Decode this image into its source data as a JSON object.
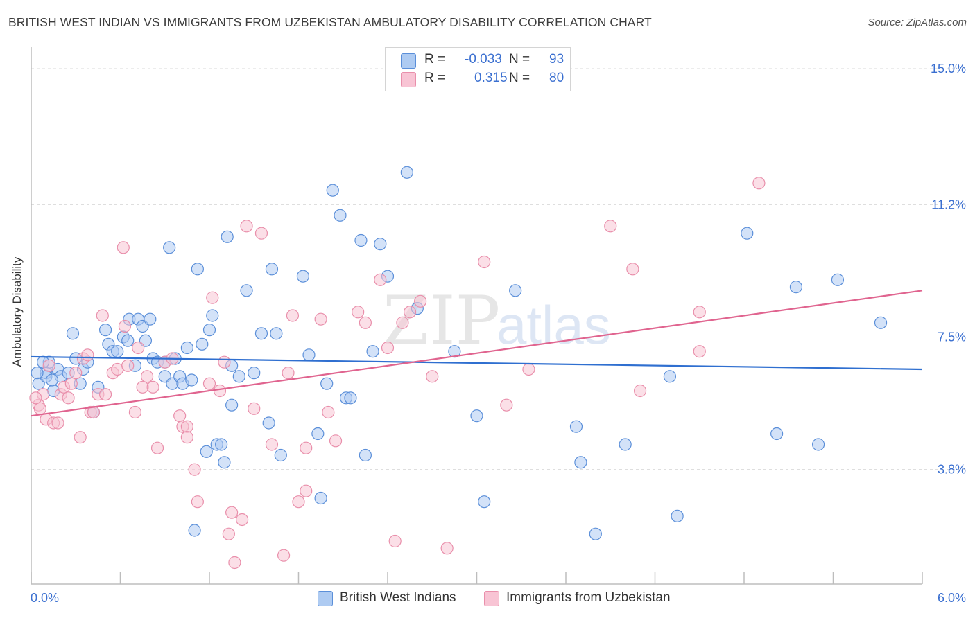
{
  "title": "BRITISH WEST INDIAN VS IMMIGRANTS FROM UZBEKISTAN AMBULATORY DISABILITY CORRELATION CHART",
  "source": "Source: ZipAtlas.com",
  "watermark": {
    "zip": "ZIP",
    "atlas": "atlas"
  },
  "colors": {
    "blue_fill": "#aecbf2",
    "blue_stroke": "#5b8fd9",
    "blue_line": "#2f6fd0",
    "pink_fill": "#f8c4d4",
    "pink_stroke": "#e98fab",
    "pink_line": "#e0648f",
    "axis_text": "#3a6fd0",
    "grid": "#d9d9d9"
  },
  "legend": {
    "rows": [
      {
        "r_label": "R =",
        "r_value": "-0.033",
        "n_label": "N =",
        "n_value": "93",
        "series": "blue"
      },
      {
        "r_label": "R =",
        "r_value": "0.315",
        "n_label": "N =",
        "n_value": "80",
        "series": "pink"
      }
    ]
  },
  "chart_data": {
    "type": "scatter",
    "xlabel": "",
    "ylabel": "Ambulatory Disability",
    "xlim": [
      0,
      6
    ],
    "ylim": [
      0.6,
      15.6
    ],
    "x_tick_labels": [
      "0.0%",
      "6.0%"
    ],
    "y_ticks": [
      3.8,
      7.5,
      11.2,
      15.0
    ],
    "y_tick_labels": [
      "3.8%",
      "7.5%",
      "11.2%",
      "15.0%"
    ],
    "legend_position": "top-center",
    "series": [
      {
        "name": "British West Indians",
        "color": "blue",
        "trend": {
          "x": [
            0,
            6
          ],
          "y": [
            6.95,
            6.6
          ]
        },
        "points": [
          [
            0.05,
            6.2
          ],
          [
            0.1,
            6.5
          ],
          [
            0.1,
            6.4
          ],
          [
            0.12,
            6.8
          ],
          [
            0.15,
            6.0
          ],
          [
            0.18,
            6.6
          ],
          [
            0.2,
            6.4
          ],
          [
            0.25,
            6.5
          ],
          [
            0.28,
            7.6
          ],
          [
            0.3,
            6.9
          ],
          [
            0.33,
            6.2
          ],
          [
            0.35,
            6.6
          ],
          [
            0.38,
            6.8
          ],
          [
            0.42,
            5.4
          ],
          [
            0.45,
            6.1
          ],
          [
            0.5,
            7.7
          ],
          [
            0.52,
            7.3
          ],
          [
            0.55,
            7.1
          ],
          [
            0.58,
            7.1
          ],
          [
            0.62,
            7.5
          ],
          [
            0.65,
            7.4
          ],
          [
            0.66,
            8.0
          ],
          [
            0.7,
            6.7
          ],
          [
            0.72,
            8.0
          ],
          [
            0.75,
            7.8
          ],
          [
            0.77,
            7.4
          ],
          [
            0.8,
            8.0
          ],
          [
            0.82,
            6.9
          ],
          [
            0.85,
            6.8
          ],
          [
            0.9,
            6.8
          ],
          [
            0.9,
            6.4
          ],
          [
            0.93,
            10.0
          ],
          [
            0.95,
            6.2
          ],
          [
            0.97,
            6.9
          ],
          [
            1.0,
            6.4
          ],
          [
            1.02,
            6.2
          ],
          [
            1.05,
            7.2
          ],
          [
            1.08,
            6.3
          ],
          [
            1.1,
            2.1
          ],
          [
            1.12,
            9.4
          ],
          [
            1.15,
            7.3
          ],
          [
            1.18,
            4.3
          ],
          [
            1.2,
            7.7
          ],
          [
            1.22,
            8.1
          ],
          [
            1.25,
            4.5
          ],
          [
            1.28,
            4.5
          ],
          [
            1.3,
            4.0
          ],
          [
            1.32,
            10.3
          ],
          [
            1.35,
            6.7
          ],
          [
            1.35,
            5.6
          ],
          [
            1.4,
            6.4
          ],
          [
            1.45,
            8.8
          ],
          [
            1.5,
            6.5
          ],
          [
            1.55,
            7.6
          ],
          [
            1.6,
            5.1
          ],
          [
            1.62,
            9.4
          ],
          [
            1.65,
            7.6
          ],
          [
            1.68,
            4.2
          ],
          [
            1.83,
            9.2
          ],
          [
            1.87,
            7.0
          ],
          [
            1.93,
            4.8
          ],
          [
            1.95,
            3.0
          ],
          [
            1.99,
            6.2
          ],
          [
            2.03,
            11.6
          ],
          [
            2.08,
            10.9
          ],
          [
            2.12,
            5.8
          ],
          [
            2.15,
            5.8
          ],
          [
            2.22,
            10.2
          ],
          [
            2.25,
            4.2
          ],
          [
            2.3,
            7.1
          ],
          [
            2.35,
            10.1
          ],
          [
            2.4,
            9.2
          ],
          [
            2.53,
            12.1
          ],
          [
            2.6,
            8.3
          ],
          [
            2.85,
            7.1
          ],
          [
            3.0,
            5.3
          ],
          [
            3.05,
            2.9
          ],
          [
            3.26,
            8.8
          ],
          [
            3.67,
            5.0
          ],
          [
            3.7,
            4.0
          ],
          [
            3.8,
            2.0
          ],
          [
            4.0,
            4.5
          ],
          [
            4.3,
            6.4
          ],
          [
            4.35,
            2.5
          ],
          [
            4.82,
            10.4
          ],
          [
            5.02,
            4.8
          ],
          [
            5.15,
            8.9
          ],
          [
            5.3,
            4.5
          ],
          [
            5.43,
            9.1
          ],
          [
            5.72,
            7.9
          ],
          [
            0.04,
            6.5
          ],
          [
            0.08,
            6.8
          ],
          [
            0.14,
            6.3
          ]
        ]
      },
      {
        "name": "Immigrants from Uzbekistan",
        "color": "pink",
        "trend": {
          "x": [
            0,
            6
          ],
          "y": [
            5.3,
            8.8
          ]
        },
        "points": [
          [
            0.05,
            5.6
          ],
          [
            0.08,
            5.9
          ],
          [
            0.1,
            5.2
          ],
          [
            0.12,
            6.7
          ],
          [
            0.15,
            5.1
          ],
          [
            0.18,
            5.1
          ],
          [
            0.2,
            5.9
          ],
          [
            0.22,
            6.1
          ],
          [
            0.25,
            5.8
          ],
          [
            0.3,
            6.5
          ],
          [
            0.33,
            4.7
          ],
          [
            0.35,
            6.9
          ],
          [
            0.38,
            7.0
          ],
          [
            0.4,
            5.4
          ],
          [
            0.42,
            5.4
          ],
          [
            0.45,
            5.9
          ],
          [
            0.48,
            8.1
          ],
          [
            0.5,
            5.9
          ],
          [
            0.55,
            6.5
          ],
          [
            0.58,
            6.6
          ],
          [
            0.62,
            10.0
          ],
          [
            0.63,
            7.8
          ],
          [
            0.65,
            6.7
          ],
          [
            0.7,
            5.4
          ],
          [
            0.72,
            7.2
          ],
          [
            0.75,
            6.1
          ],
          [
            0.78,
            6.4
          ],
          [
            0.82,
            6.1
          ],
          [
            0.85,
            4.4
          ],
          [
            0.9,
            6.8
          ],
          [
            0.95,
            6.9
          ],
          [
            1.0,
            5.3
          ],
          [
            1.02,
            5.0
          ],
          [
            1.05,
            5.0
          ],
          [
            1.05,
            4.7
          ],
          [
            1.1,
            3.8
          ],
          [
            1.12,
            2.9
          ],
          [
            1.2,
            6.2
          ],
          [
            1.22,
            8.6
          ],
          [
            1.27,
            6.0
          ],
          [
            1.3,
            6.8
          ],
          [
            1.33,
            2.0
          ],
          [
            1.35,
            2.6
          ],
          [
            1.37,
            1.2
          ],
          [
            1.42,
            2.4
          ],
          [
            1.45,
            10.6
          ],
          [
            1.5,
            5.5
          ],
          [
            1.55,
            10.4
          ],
          [
            1.62,
            4.5
          ],
          [
            1.7,
            1.4
          ],
          [
            1.73,
            6.5
          ],
          [
            1.76,
            8.1
          ],
          [
            1.8,
            2.9
          ],
          [
            1.85,
            3.2
          ],
          [
            1.85,
            4.4
          ],
          [
            1.95,
            8.0
          ],
          [
            2.0,
            5.4
          ],
          [
            2.05,
            4.6
          ],
          [
            2.2,
            8.2
          ],
          [
            2.25,
            7.9
          ],
          [
            2.35,
            9.1
          ],
          [
            2.4,
            7.2
          ],
          [
            2.45,
            1.8
          ],
          [
            2.5,
            7.9
          ],
          [
            2.55,
            8.2
          ],
          [
            2.62,
            8.5
          ],
          [
            2.7,
            6.4
          ],
          [
            2.8,
            1.6
          ],
          [
            3.05,
            9.6
          ],
          [
            3.2,
            5.6
          ],
          [
            3.35,
            6.6
          ],
          [
            3.9,
            10.6
          ],
          [
            4.05,
            9.4
          ],
          [
            4.1,
            6.0
          ],
          [
            4.5,
            8.2
          ],
          [
            4.5,
            7.1
          ],
          [
            4.9,
            11.8
          ],
          [
            0.06,
            5.5
          ],
          [
            0.03,
            5.8
          ],
          [
            0.27,
            6.2
          ]
        ]
      }
    ]
  }
}
